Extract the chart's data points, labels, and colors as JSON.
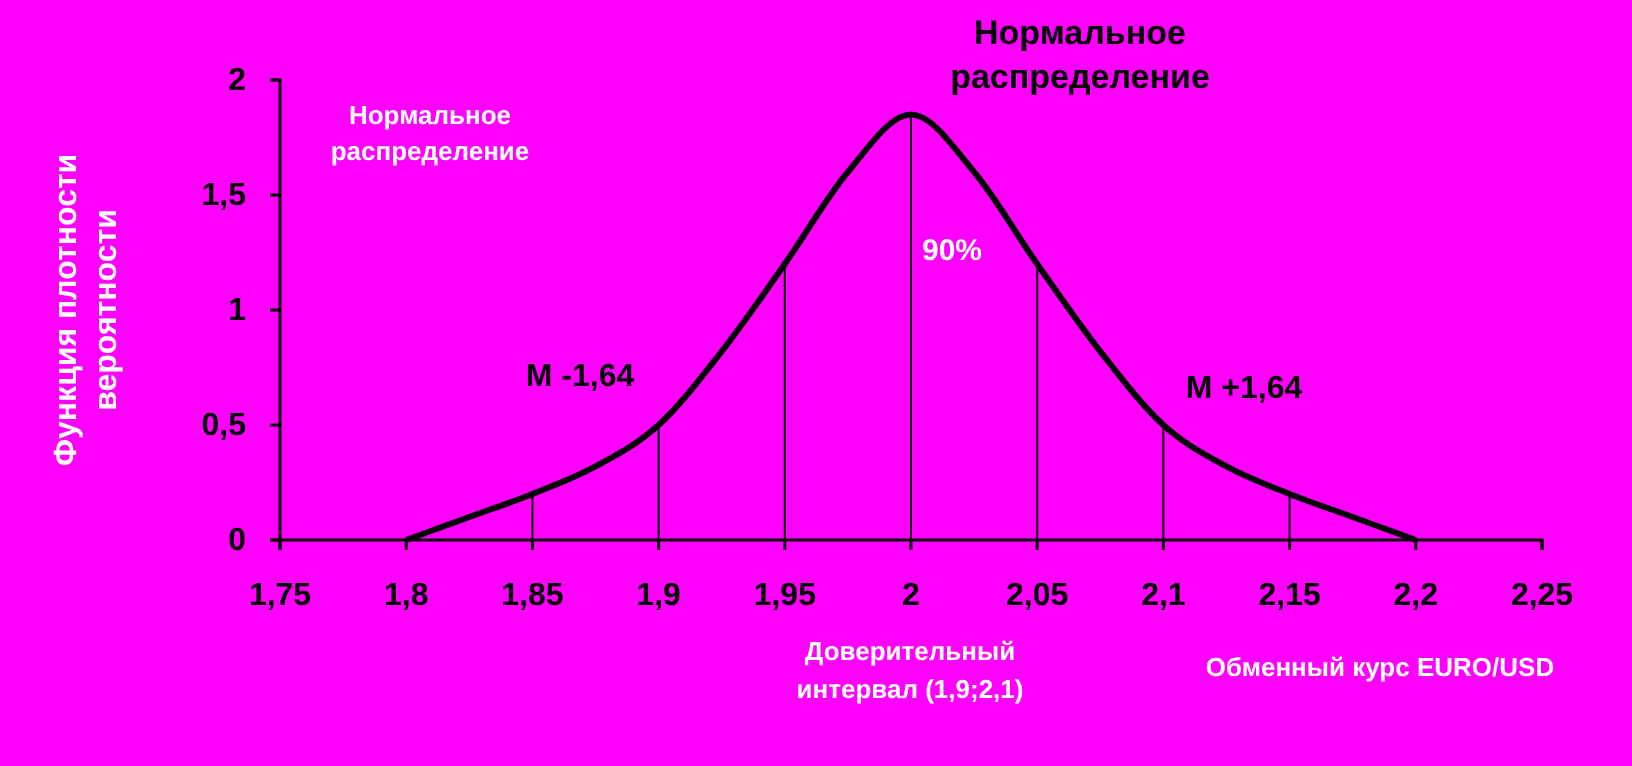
{
  "chart_data": {
    "type": "line",
    "title": "Нормальное распределение",
    "xlabel": "Обменный курс EURO/USD",
    "ylabel": "Функция плотности вероятности",
    "annotations": [
      "Нормальное распределение",
      "90%",
      "M -1,64",
      "M +1,64",
      "Доверительный интервал (1,9;2,1)"
    ],
    "series": [
      {
        "color": "#000000",
        "x": [
          1.8,
          1.825,
          1.85,
          1.875,
          1.9,
          1.925,
          1.95,
          1.975,
          2.0,
          2.025,
          2.05,
          2.075,
          2.1,
          2.125,
          2.15,
          2.175,
          2.2
        ],
        "values": [
          0,
          0.1,
          0.2,
          0.32,
          0.5,
          0.82,
          1.2,
          1.6,
          1.85,
          1.6,
          1.2,
          0.82,
          0.5,
          0.32,
          0.2,
          0.1,
          0
        ]
      },
      {
        "type": "bar",
        "color": "#000000",
        "x": [
          1.85,
          1.9,
          1.95,
          2.0,
          2.05,
          2.1,
          2.15
        ],
        "values": [
          0.2,
          0.5,
          1.2,
          1.85,
          1.2,
          0.5,
          0.2
        ]
      }
    ],
    "xlim": [
      1.75,
      2.25
    ],
    "xticks": [
      {
        "value": 1.75,
        "label": "1,75"
      },
      {
        "value": 1.8,
        "label": "1,8"
      },
      {
        "value": 1.85,
        "label": "1,85"
      },
      {
        "value": 1.9,
        "label": "1,9"
      },
      {
        "value": 1.95,
        "label": "1,95"
      },
      {
        "value": 2,
        "label": "2"
      },
      {
        "value": 2.05,
        "label": "2,05"
      },
      {
        "value": 2.1,
        "label": "2,1"
      },
      {
        "value": 2.15,
        "label": "2,15"
      },
      {
        "value": 2.2,
        "label": "2,2"
      },
      {
        "value": 2.25,
        "label": "2,25"
      }
    ],
    "ylim": [
      0,
      2
    ],
    "yticks": [
      0,
      {
        "value": 0.5,
        "label": "0,5"
      },
      1,
      {
        "value": 1.5,
        "label": "1,5"
      },
      2
    ],
    "grid": false,
    "marker": "none",
    "line_style": "solid"
  }
}
